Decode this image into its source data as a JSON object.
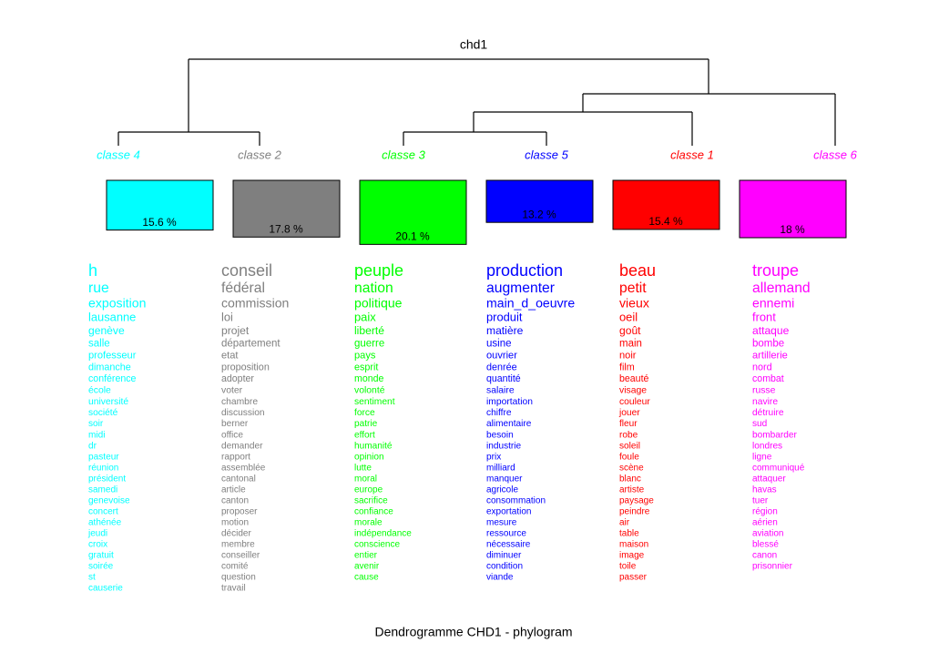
{
  "chart_data": {
    "type": "dendrogram",
    "title": "chd1",
    "caption": "Dendrogramme CHD1 - phylogram",
    "classes": [
      {
        "name": "classe  4",
        "color": "#00ffff",
        "value": 15.6,
        "value_label": "15.6 %",
        "words": [
          "h",
          "rue",
          "exposition",
          "lausanne",
          "genève",
          "salle",
          "professeur",
          "dimanche",
          "conférence",
          "école",
          "université",
          "société",
          "soir",
          "midi",
          "dr",
          "pasteur",
          "réunion",
          "président",
          "samedi",
          "genevoise",
          "concert",
          "athénée",
          "jeudi",
          "croix",
          "gratuit",
          "soirée",
          "st",
          "causerie"
        ]
      },
      {
        "name": "classe  2",
        "color": "#7f7f7f",
        "value": 17.8,
        "value_label": "17.8 %",
        "words": [
          "conseil",
          "fédéral",
          "commission",
          "loi",
          "projet",
          "département",
          "etat",
          "proposition",
          "adopter",
          "voter",
          "chambre",
          "discussion",
          "berner",
          "office",
          "demander",
          "rapport",
          "assemblée",
          "cantonal",
          "article",
          "canton",
          "proposer",
          "motion",
          "décider",
          "membre",
          "conseiller",
          "comité",
          "question",
          "travail"
        ]
      },
      {
        "name": "classe  3",
        "color": "#00ff00",
        "value": 20.1,
        "value_label": "20.1 %",
        "words": [
          "peuple",
          "nation",
          "politique",
          "paix",
          "liberté",
          "guerre",
          "pays",
          "esprit",
          "monde",
          "volonté",
          "sentiment",
          "force",
          "patrie",
          "effort",
          "humanité",
          "opinion",
          "lutte",
          "moral",
          "europe",
          "sacrifice",
          "confiance",
          "morale",
          "indépendance",
          "conscience",
          "entier",
          "avenir",
          "cause"
        ]
      },
      {
        "name": "classe  5",
        "color": "#0000ff",
        "value": 13.2,
        "value_label": "13.2 %",
        "words": [
          "production",
          "augmenter",
          "main_d_oeuvre",
          "produit",
          "matière",
          "usine",
          "ouvrier",
          "denrée",
          "quantité",
          "salaire",
          "importation",
          "chiffre",
          "alimentaire",
          "besoin",
          "industrie",
          "prix",
          "milliard",
          "manquer",
          "agricole",
          "consommation",
          "exportation",
          "mesure",
          "ressource",
          "nécessaire",
          "diminuer",
          "condition",
          "viande"
        ]
      },
      {
        "name": "classe  1",
        "color": "#ff0000",
        "value": 15.4,
        "value_label": "15.4 %",
        "words": [
          "beau",
          "petit",
          "vieux",
          "oeil",
          "goût",
          "main",
          "noir",
          "film",
          "beauté",
          "visage",
          "couleur",
          "jouer",
          "fleur",
          "robe",
          "soleil",
          "foule",
          "scène",
          "blanc",
          "artiste",
          "paysage",
          "peindre",
          "air",
          "table",
          "maison",
          "image",
          "toile",
          "passer"
        ]
      },
      {
        "name": "classe  6",
        "color": "#ff00ff",
        "value": 18,
        "value_label": "18 %",
        "words": [
          "troupe",
          "allemand",
          "ennemi",
          "front",
          "attaque",
          "bombe",
          "artillerie",
          "nord",
          "combat",
          "russe",
          "navire",
          "détruire",
          "sud",
          "bombarder",
          "londres",
          "ligne",
          "communiqué",
          "attaquer",
          "havas",
          "tuer",
          "région",
          "aérien",
          "aviation",
          "blessé",
          "canon",
          "prisonnier"
        ]
      }
    ]
  }
}
